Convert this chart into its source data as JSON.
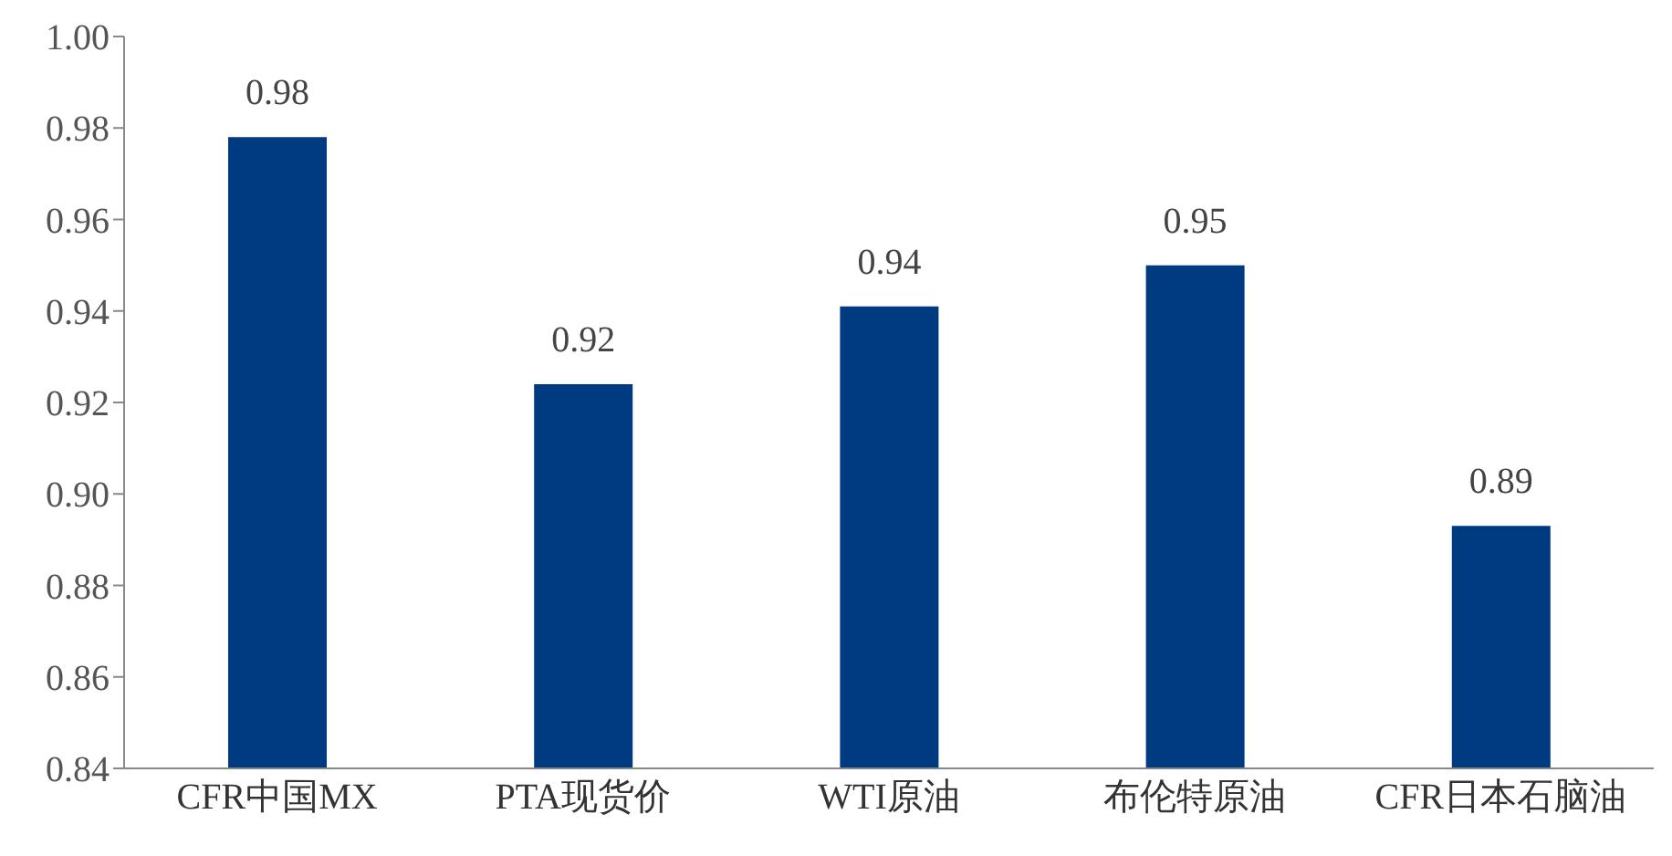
{
  "chart_data": {
    "type": "bar",
    "categories": [
      "CFR中国MX",
      "PTA现货价",
      "WTI原油",
      "布伦特原油",
      "CFR日本石脑油"
    ],
    "values": [
      0.978,
      0.924,
      0.941,
      0.95,
      0.893
    ],
    "value_labels": [
      "0.98",
      "0.92",
      "0.94",
      "0.95",
      "0.89"
    ],
    "color": "#003a80",
    "ylim": [
      0.84,
      1.0
    ],
    "yticks": [
      "0.84",
      "0.86",
      "0.88",
      "0.90",
      "0.92",
      "0.94",
      "0.96",
      "0.98",
      "1.00"
    ],
    "grid": false
  }
}
